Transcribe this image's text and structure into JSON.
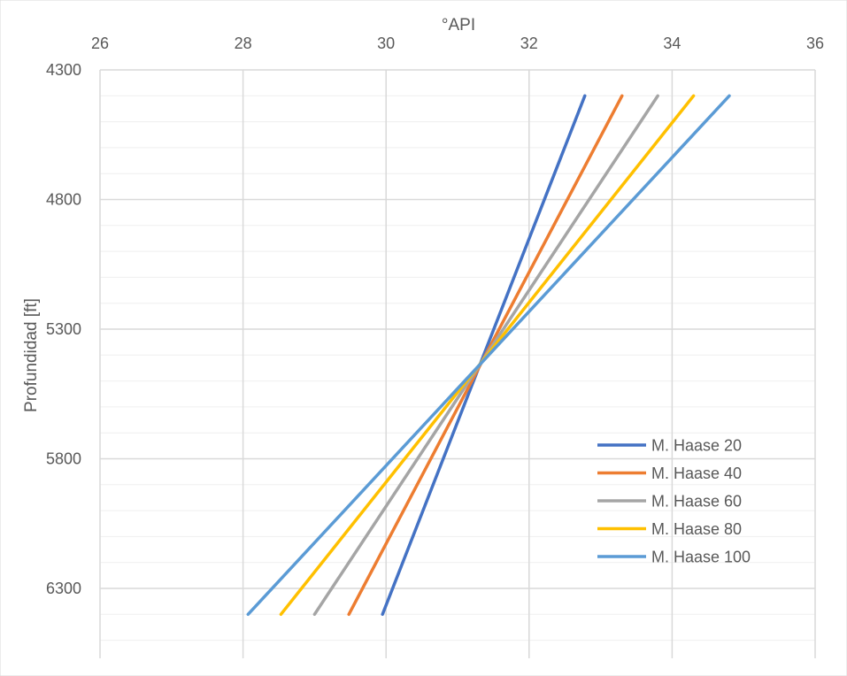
{
  "chart_data": {
    "type": "line",
    "title": "",
    "xlabel": "°API",
    "ylabel": "Profundidad [ft]",
    "x_axis_position": "top",
    "y_axis_reversed": true,
    "xlim": [
      26,
      36
    ],
    "ylim": [
      4300,
      6550
    ],
    "x_ticks": [
      26,
      28,
      30,
      32,
      34,
      36
    ],
    "y_ticks": [
      4300,
      4800,
      5300,
      5800,
      6300
    ],
    "grid": true,
    "legend_position": "right",
    "series": [
      {
        "name": "M. Haase 20",
        "color": "#4472C4",
        "x": [
          32.78,
          29.95
        ],
        "y": [
          4400,
          6400
        ]
      },
      {
        "name": "M. Haase 40",
        "color": "#ED7D31",
        "x": [
          33.3,
          29.48
        ],
        "y": [
          4400,
          6400
        ]
      },
      {
        "name": "M. Haase 60",
        "color": "#A5A5A5",
        "x": [
          33.8,
          29.0
        ],
        "y": [
          4400,
          6400
        ]
      },
      {
        "name": "M. Haase 80",
        "color": "#FFC000",
        "x": [
          34.3,
          28.53
        ],
        "y": [
          4400,
          6400
        ]
      },
      {
        "name": "M. Haase 100",
        "color": "#5B9BD5",
        "x": [
          34.8,
          28.07
        ],
        "y": [
          4400,
          6400
        ]
      }
    ]
  }
}
